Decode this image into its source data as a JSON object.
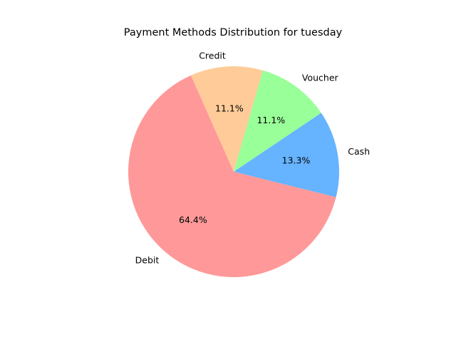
{
  "chart_data": {
    "type": "pie",
    "title": "Payment Methods Distribution for tuesday",
    "categories": [
      "Cash",
      "Voucher",
      "Credit",
      "Debit"
    ],
    "values": [
      13.3,
      11.1,
      11.1,
      64.4
    ],
    "labels": [
      "13.3%",
      "11.1%",
      "11.1%",
      "64.4%"
    ],
    "colors": [
      "#66b3ff",
      "#99ff99",
      "#ffcc99",
      "#ff9999"
    ],
    "start_angle_deg": -14,
    "direction": "counterclockwise"
  }
}
